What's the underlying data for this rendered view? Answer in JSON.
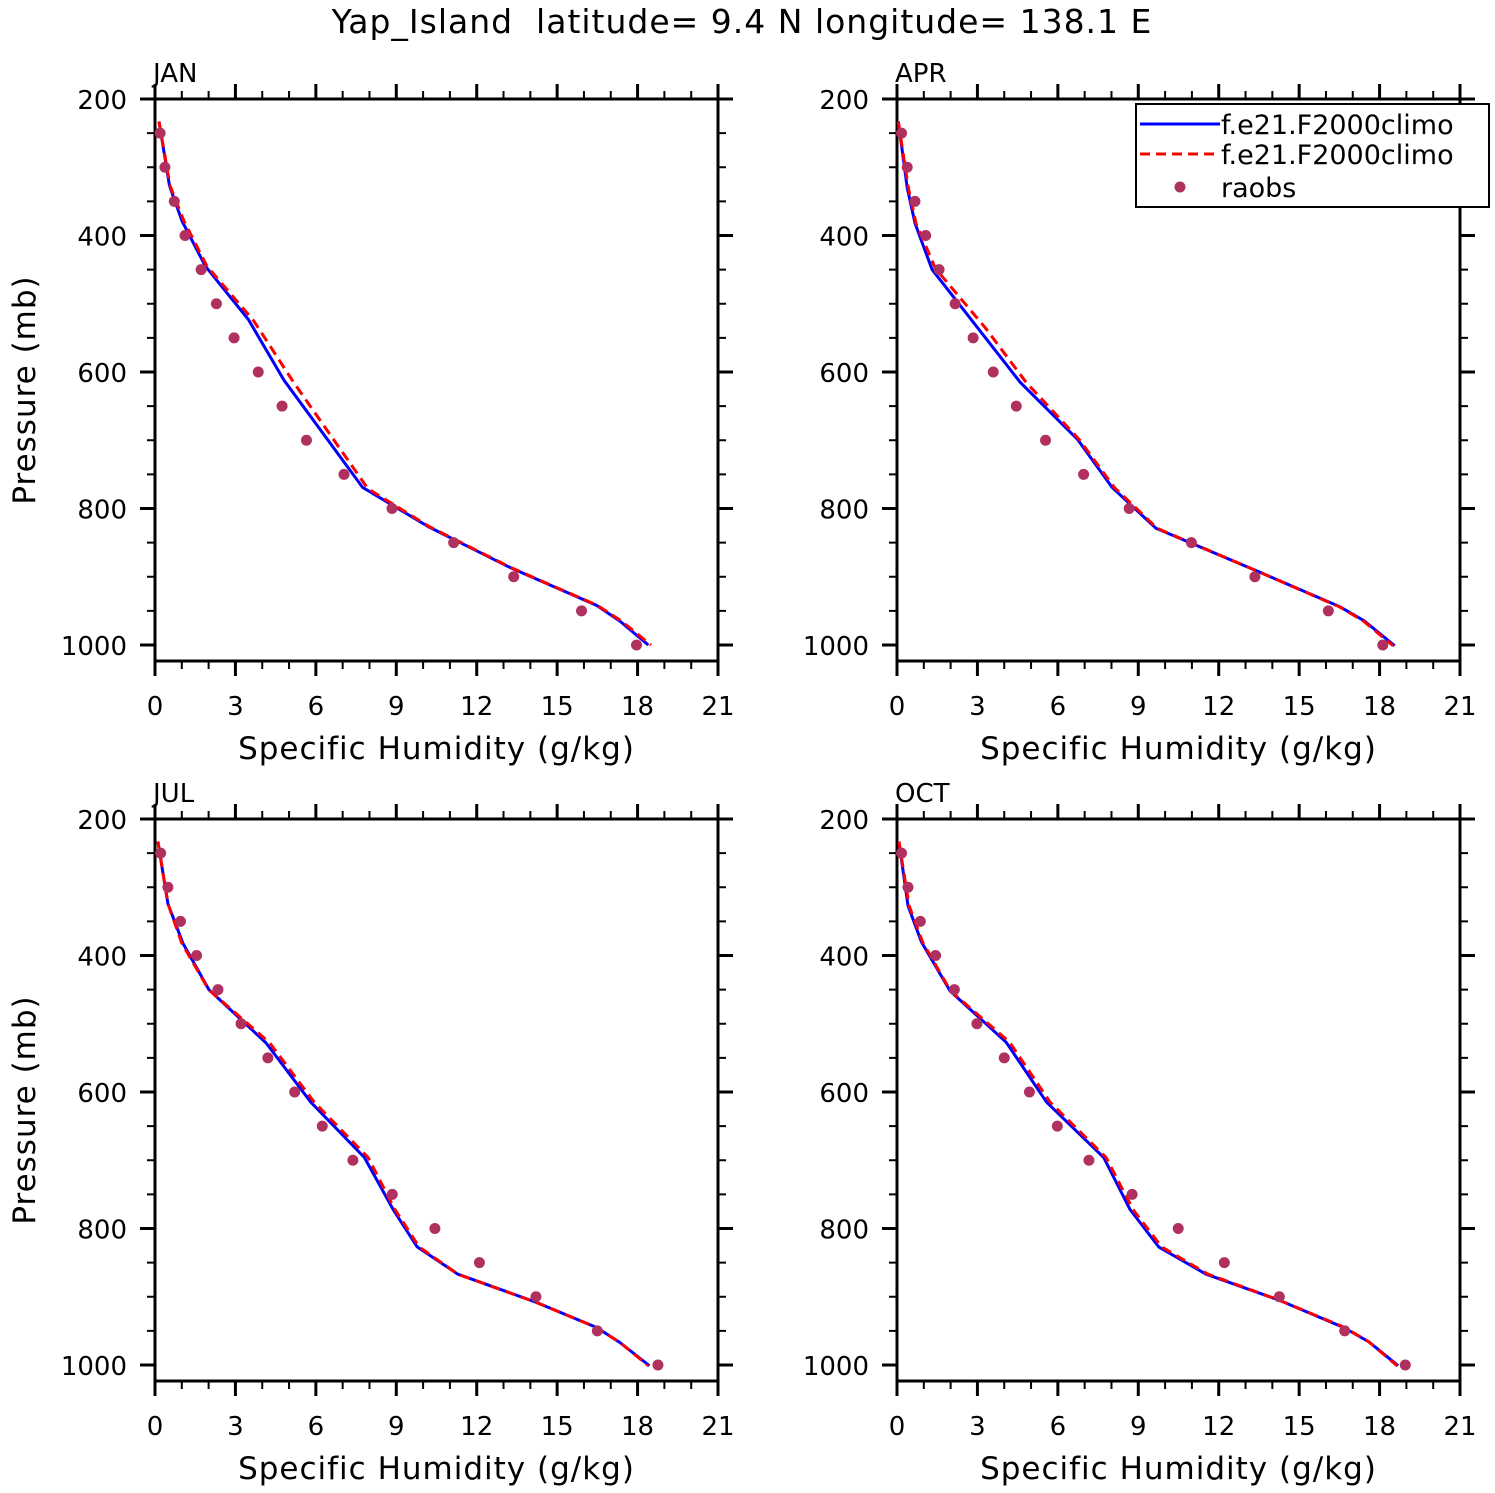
{
  "chart_data": {
    "type": "line",
    "title": "Yap_Island  latitude= 9.4 N longitude= 138.1 E",
    "xlabel": "Specific Humidity (g/kg)",
    "ylabel": "Pressure (mb)",
    "xlim": [
      0,
      21
    ],
    "ylim": [
      1025,
      200
    ],
    "y_inverted": true,
    "x_ticks": [
      0,
      3,
      6,
      9,
      12,
      15,
      18,
      21
    ],
    "y_ticks": [
      200,
      400,
      600,
      800,
      1000
    ],
    "grid": false,
    "legend": {
      "placement": "top-right of APR panel",
      "entries": [
        {
          "label": "f.e21.F2000climo",
          "style": "solid",
          "color": "#0000ff"
        },
        {
          "label": "f.e21.F2000climo",
          "style": "dashed",
          "color": "#ff0000"
        },
        {
          "label": "raobs",
          "style": "marker",
          "color": "#b03060"
        }
      ]
    },
    "raobs_pressure": [
      250,
      300,
      350,
      400,
      450,
      500,
      550,
      600,
      650,
      700,
      750,
      800,
      850,
      900,
      950,
      1000
    ],
    "panels": [
      {
        "label": "JAN",
        "series": [
          {
            "name": "f.e21.F2000climo",
            "style": "solid",
            "color": "#0000ff",
            "p": [
              233,
              327,
              379,
              445,
              523,
              612,
              769,
              827,
              887,
              942,
              965,
              1000
            ],
            "q": [
              0.15,
              0.54,
              1.01,
              1.88,
              3.48,
              4.81,
              7.74,
              10.21,
              13.27,
              16.47,
              17.34,
              18.4
            ]
          },
          {
            "name": "f.e21.F2000climo",
            "style": "dashed",
            "color": "#ff0000",
            "p": [
              233,
              327,
              379,
              445,
              525,
              614,
              771,
              827,
              887,
              942,
              965,
              1000
            ],
            "q": [
              0.15,
              0.56,
              1.08,
              1.94,
              3.68,
              5.15,
              7.94,
              10.25,
              13.3,
              16.5,
              17.4,
              18.5
            ]
          }
        ],
        "raobs": [
          0.19,
          0.37,
          0.72,
          1.12,
          1.72,
          2.29,
          2.95,
          3.85,
          4.74,
          5.65,
          7.05,
          8.84,
          11.14,
          13.38,
          15.91,
          17.96
        ]
      },
      {
        "label": "APR",
        "series": [
          {
            "name": "f.e21.F2000climo",
            "style": "solid",
            "color": "#0000ff",
            "p": [
              233,
              330,
              382,
              450,
              615,
              699,
              769,
              829,
              892,
              944,
              965,
              1001
            ],
            "q": [
              0.05,
              0.38,
              0.67,
              1.31,
              4.59,
              6.74,
              8.02,
              9.66,
              13.45,
              16.52,
              17.44,
              18.56
            ]
          },
          {
            "name": "f.e21.F2000climo",
            "style": "dashed",
            "color": "#ff0000",
            "p": [
              233,
              330,
              382,
              448,
              536,
              615,
              699,
              769,
              829,
              892,
              944,
              965,
              1001
            ],
            "q": [
              0.05,
              0.42,
              0.71,
              1.43,
              3.31,
              4.81,
              6.8,
              8.1,
              9.7,
              13.45,
              16.5,
              17.4,
              18.5
            ]
          }
        ],
        "raobs": [
          0.17,
          0.38,
          0.67,
          1.07,
          1.57,
          2.17,
          2.84,
          3.59,
          4.45,
          5.54,
          6.96,
          8.66,
          10.98,
          13.35,
          16.09,
          18.12
        ]
      },
      {
        "label": "JUL",
        "series": [
          {
            "name": "f.e21.F2000climo",
            "style": "solid",
            "color": "#0000ff",
            "p": [
              233,
              324,
              382,
              450,
              528,
              615,
              696,
              772,
              827,
              867,
              908,
              945,
              967,
              1001
            ],
            "q": [
              0.11,
              0.48,
              1.04,
              2.01,
              4.14,
              5.81,
              7.81,
              8.88,
              9.78,
              11.3,
              14.21,
              16.47,
              17.34,
              18.44
            ]
          },
          {
            "name": "f.e21.F2000climo",
            "style": "dashed",
            "color": "#ff0000",
            "p": [
              233,
              324,
              382,
              450,
              528,
              615,
              696,
              772,
              827,
              867,
              908,
              945,
              967,
              1001
            ],
            "q": [
              0.11,
              0.48,
              1.0,
              2.0,
              4.28,
              5.94,
              7.95,
              8.95,
              9.85,
              11.3,
              14.2,
              16.47,
              17.34,
              18.4
            ]
          }
        ],
        "raobs": [
          0.21,
          0.48,
          0.95,
          1.55,
          2.35,
          3.21,
          4.21,
          5.21,
          6.24,
          7.38,
          8.85,
          10.44,
          12.1,
          14.21,
          16.5,
          18.76
        ]
      },
      {
        "label": "OCT",
        "series": [
          {
            "name": "f.e21.F2000climo",
            "style": "solid",
            "color": "#0000ff",
            "p": [
              233,
              327,
              380,
              452,
              527,
              615,
              696,
              772,
              827,
              867,
              905,
              945,
              966,
              1001
            ],
            "q": [
              0.07,
              0.41,
              0.91,
              1.98,
              4.07,
              5.58,
              7.71,
              8.69,
              9.76,
              11.53,
              14.26,
              16.66,
              17.6,
              18.69
            ]
          },
          {
            "name": "f.e21.F2000climo",
            "style": "dashed",
            "color": "#ff0000",
            "p": [
              233,
              327,
              380,
              452,
              527,
              615,
              696,
              772,
              827,
              867,
              905,
              945,
              966,
              1001
            ],
            "q": [
              0.07,
              0.45,
              0.95,
              2.0,
              4.2,
              5.71,
              7.8,
              8.8,
              9.87,
              11.6,
              14.26,
              16.7,
              17.6,
              18.65
            ]
          }
        ],
        "raobs": [
          0.17,
          0.41,
          0.87,
          1.44,
          2.14,
          2.98,
          4.0,
          4.94,
          5.98,
          7.16,
          8.77,
          10.49,
          12.21,
          14.26,
          16.7,
          18.96
        ]
      }
    ]
  }
}
